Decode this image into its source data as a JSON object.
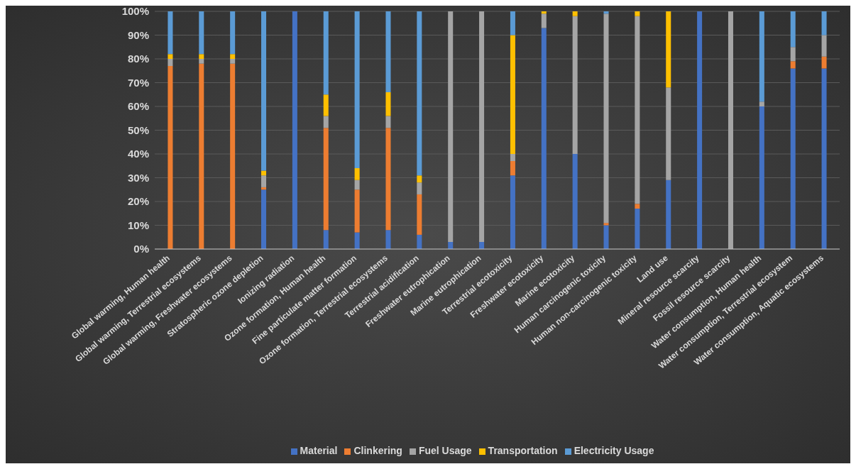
{
  "chart_data": {
    "type": "bar",
    "stacked": true,
    "categories": [
      "Global warming, Human health",
      "Global warming, Terrestrial ecosystems",
      "Global warming, Freshwater ecosystems",
      "Stratospheric ozone depletion",
      "Ionizing radiation",
      "Ozone formation, Human health",
      "Fine particulate matter formation",
      "Ozone formation, Terrestrial ecosystems",
      "Terrestrial acidification",
      "Freshwater eutrophication",
      "Marine eutrophication",
      "Terrestrial ecotoxicity",
      "Freshwater ecotoxicity",
      "Marine ecotoxicity",
      "Human carcinogenic toxicity",
      "Human non-carcinogenic toxicity",
      "Land use",
      "Mineral resource scarcity",
      "Fossil resource scarcity",
      "Water consumption, Human health",
      "Water consumption, Terrestrial ecosystem",
      "Water consumption, Aquatic ecosystems"
    ],
    "series": [
      {
        "name": "Material",
        "color": "#4472c4",
        "values": [
          0,
          0,
          0,
          25,
          100,
          8,
          7,
          8,
          6,
          3,
          3,
          31,
          93,
          40,
          10,
          17,
          29,
          100,
          0,
          60,
          76,
          76
        ]
      },
      {
        "name": "Clinkering",
        "color": "#ed7d31",
        "values": [
          77,
          78,
          78,
          1,
          0,
          43,
          18,
          43,
          17,
          0,
          0,
          6,
          0,
          0,
          1,
          2,
          0,
          0,
          0,
          0,
          3,
          5
        ]
      },
      {
        "name": "Fuel Usage",
        "color": "#a5a5a5",
        "values": [
          3,
          2,
          2,
          5,
          0,
          5,
          4,
          5,
          5,
          97,
          97,
          3,
          6,
          58,
          88,
          79,
          39,
          0,
          100,
          2,
          6,
          9
        ]
      },
      {
        "name": "Transportation",
        "color": "#ffc000",
        "values": [
          2,
          2,
          2,
          2,
          0,
          9,
          5,
          10,
          3,
          0,
          0,
          50,
          1,
          2,
          0,
          2,
          32,
          0,
          0,
          0,
          0,
          0
        ]
      },
      {
        "name": "Electricity Usage",
        "color": "#5b9bd5",
        "values": [
          18,
          18,
          18,
          67,
          0,
          35,
          66,
          34,
          69,
          0,
          0,
          10,
          0,
          0,
          1,
          0,
          0,
          0,
          0,
          38,
          15,
          10
        ]
      }
    ],
    "ylim": [
      0,
      100
    ],
    "yticks": [
      {
        "value": 0,
        "label": "0%"
      },
      {
        "value": 10,
        "label": "10%"
      },
      {
        "value": 20,
        "label": "20%"
      },
      {
        "value": 30,
        "label": "30%"
      },
      {
        "value": 40,
        "label": "40%"
      },
      {
        "value": 50,
        "label": "50%"
      },
      {
        "value": 60,
        "label": "60%"
      },
      {
        "value": 70,
        "label": "70%"
      },
      {
        "value": 80,
        "label": "80%"
      },
      {
        "value": 90,
        "label": "90%"
      },
      {
        "value": 100,
        "label": "100%"
      }
    ],
    "grid": "y",
    "legend": "bottom"
  }
}
